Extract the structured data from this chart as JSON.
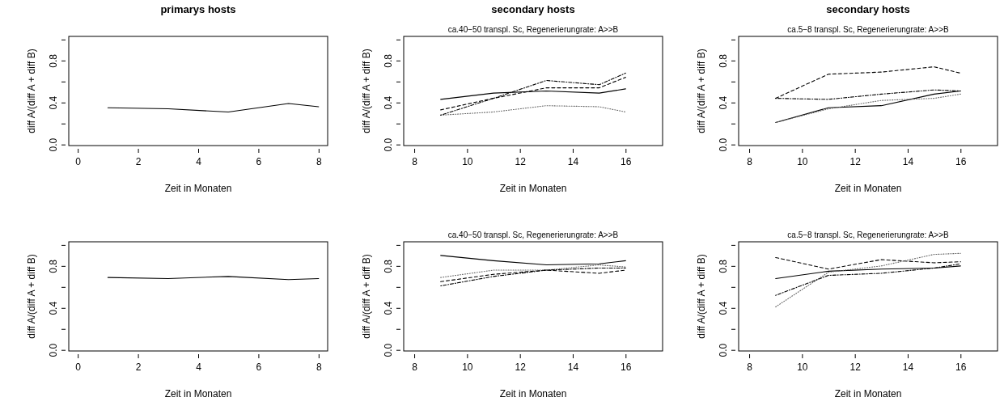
{
  "chart_data": [
    {
      "type": "line",
      "title": "primarys hosts",
      "xlabel": "Zeit in Monaten",
      "ylabel": "diff A/(diff A + diff B)",
      "x": [
        1,
        3,
        5,
        7,
        8
      ],
      "xlim": [
        -0.3,
        8.3
      ],
      "xticks": [
        0,
        2,
        4,
        6,
        8
      ],
      "ylim": [
        -0.01,
        1.03
      ],
      "yticks": [
        {
          "value": 0,
          "label": "0.0"
        },
        {
          "value": 0.2,
          "label": null
        },
        {
          "value": 0.4,
          "label": "0.4"
        },
        {
          "value": 0.6,
          "label": null
        },
        {
          "value": 0.8,
          "label": "0.8"
        },
        {
          "value": 1,
          "label": null
        }
      ],
      "series": [
        {
          "color": "#000000",
          "line_style": "solid",
          "values": [
            0.35,
            0.34,
            0.31,
            0.39,
            0.36
          ]
        }
      ]
    },
    {
      "type": "line",
      "title": "secondary hosts",
      "subtitle": "ca.40−50 transpl. Sc, Regenerierungrate: A>>B",
      "xlabel": "Zeit in Monaten",
      "ylabel": "diff A/(diff A + diff B)",
      "x": [
        9,
        11,
        13,
        15,
        16
      ],
      "xlim": [
        7.6,
        17.4
      ],
      "xticks": [
        8,
        10,
        12,
        14,
        16
      ],
      "ylim": [
        -0.01,
        1.03
      ],
      "yticks": [
        {
          "value": 0,
          "label": "0.0"
        },
        {
          "value": 0.2,
          "label": null
        },
        {
          "value": 0.4,
          "label": "0.4"
        },
        {
          "value": 0.6,
          "label": null
        },
        {
          "value": 0.8,
          "label": "0.8"
        },
        {
          "value": 1,
          "label": null
        }
      ],
      "series": [
        {
          "color": "#000000",
          "line_style": "solid",
          "values": [
            0.43,
            0.49,
            0.51,
            0.49,
            0.53
          ]
        },
        {
          "color": "#000000",
          "line_style": "dashed",
          "values": [
            0.33,
            0.44,
            0.54,
            0.54,
            0.64
          ]
        },
        {
          "color": "#666666",
          "line_style": "dotted",
          "values": [
            0.28,
            0.31,
            0.37,
            0.36,
            0.31
          ]
        },
        {
          "color": "#000000",
          "line_style": "dashdot",
          "values": [
            0.28,
            0.44,
            0.61,
            0.57,
            0.68
          ]
        }
      ]
    },
    {
      "type": "line",
      "title": "secondary hosts",
      "subtitle": "ca.5−8 transpl. Sc, Regenerierungrate: A>>B",
      "xlabel": "Zeit in Monaten",
      "ylabel": "diff A/(diff A + diff B)",
      "x": [
        9,
        11,
        13,
        15,
        16
      ],
      "xlim": [
        7.6,
        17.4
      ],
      "xticks": [
        8,
        10,
        12,
        14,
        16
      ],
      "ylim": [
        -0.01,
        1.03
      ],
      "yticks": [
        {
          "value": 0,
          "label": "0.0"
        },
        {
          "value": 0.2,
          "label": null
        },
        {
          "value": 0.4,
          "label": "0.4"
        },
        {
          "value": 0.6,
          "label": null
        },
        {
          "value": 0.8,
          "label": "0.8"
        },
        {
          "value": 1,
          "label": null
        }
      ],
      "series": [
        {
          "color": "#000000",
          "line_style": "solid",
          "values": [
            0.21,
            0.35,
            0.37,
            0.48,
            0.51
          ]
        },
        {
          "color": "#000000",
          "line_style": "dashed",
          "values": [
            0.44,
            0.67,
            0.69,
            0.74,
            0.68
          ]
        },
        {
          "color": "#666666",
          "line_style": "dotted",
          "values": [
            0.21,
            0.34,
            0.42,
            0.44,
            0.48
          ]
        },
        {
          "color": "#000000",
          "line_style": "dashdot",
          "values": [
            0.44,
            0.43,
            0.48,
            0.52,
            0.51
          ]
        }
      ]
    },
    {
      "type": "line",
      "xlabel": "Zeit in Monaten",
      "ylabel": "diff A/(diff A + diff B)",
      "x": [
        1,
        3,
        5,
        7,
        8
      ],
      "xlim": [
        -0.3,
        8.3
      ],
      "xticks": [
        0,
        2,
        4,
        6,
        8
      ],
      "ylim": [
        -0.01,
        1.03
      ],
      "yticks": [
        {
          "value": 0,
          "label": "0.0"
        },
        {
          "value": 0.2,
          "label": null
        },
        {
          "value": 0.4,
          "label": "0.4"
        },
        {
          "value": 0.6,
          "label": null
        },
        {
          "value": 0.8,
          "label": "0.8"
        },
        {
          "value": 1,
          "label": null
        }
      ],
      "series": [
        {
          "color": "#000000",
          "line_style": "solid",
          "values": [
            0.69,
            0.68,
            0.7,
            0.67,
            0.68
          ]
        }
      ]
    },
    {
      "type": "line",
      "subtitle": "ca.40−50 transpl. Sc, Regenerierungrate: A>>B",
      "xlabel": "Zeit in Monaten",
      "ylabel": "diff A/(diff A + diff B)",
      "x": [
        9,
        11,
        13,
        15,
        16
      ],
      "xlim": [
        7.6,
        17.4
      ],
      "xticks": [
        8,
        10,
        12,
        14,
        16
      ],
      "ylim": [
        -0.01,
        1.03
      ],
      "yticks": [
        {
          "value": 0,
          "label": "0.0"
        },
        {
          "value": 0.2,
          "label": null
        },
        {
          "value": 0.4,
          "label": "0.4"
        },
        {
          "value": 0.6,
          "label": null
        },
        {
          "value": 0.8,
          "label": "0.8"
        },
        {
          "value": 1,
          "label": null
        }
      ],
      "series": [
        {
          "color": "#000000",
          "line_style": "solid",
          "values": [
            0.9,
            0.85,
            0.81,
            0.82,
            0.85
          ]
        },
        {
          "color": "#000000",
          "line_style": "dashed",
          "values": [
            0.65,
            0.72,
            0.76,
            0.73,
            0.76
          ]
        },
        {
          "color": "#666666",
          "line_style": "dotted",
          "values": [
            0.69,
            0.76,
            0.76,
            0.81,
            0.79
          ]
        },
        {
          "color": "#000000",
          "line_style": "dashdot",
          "values": [
            0.61,
            0.7,
            0.76,
            0.78,
            0.78
          ]
        }
      ]
    },
    {
      "type": "line",
      "subtitle": "ca.5−8 transpl. Sc, Regenerierungrate: A>>B",
      "xlabel": "Zeit in Monaten",
      "ylabel": "diff A/(diff A + diff B)",
      "x": [
        9,
        11,
        13,
        15,
        16
      ],
      "xlim": [
        7.6,
        17.4
      ],
      "xticks": [
        8,
        10,
        12,
        14,
        16
      ],
      "ylim": [
        -0.01,
        1.03
      ],
      "yticks": [
        {
          "value": 0,
          "label": "0.0"
        },
        {
          "value": 0.2,
          "label": null
        },
        {
          "value": 0.4,
          "label": "0.4"
        },
        {
          "value": 0.6,
          "label": null
        },
        {
          "value": 0.8,
          "label": "0.8"
        },
        {
          "value": 1,
          "label": null
        }
      ],
      "series": [
        {
          "color": "#000000",
          "line_style": "solid",
          "values": [
            0.68,
            0.75,
            0.77,
            0.78,
            0.8
          ]
        },
        {
          "color": "#000000",
          "line_style": "dashed",
          "values": [
            0.88,
            0.77,
            0.86,
            0.83,
            0.84
          ]
        },
        {
          "color": "#666666",
          "line_style": "dotted",
          "values": [
            0.41,
            0.74,
            0.8,
            0.91,
            0.92
          ]
        },
        {
          "color": "#000000",
          "line_style": "dashdot",
          "values": [
            0.52,
            0.71,
            0.73,
            0.78,
            0.82
          ]
        }
      ]
    }
  ]
}
